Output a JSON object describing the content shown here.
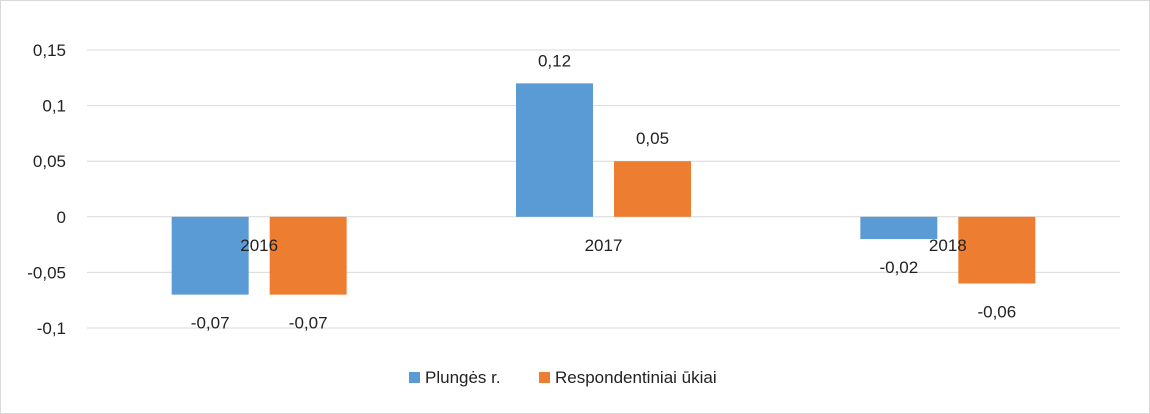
{
  "chart_data": {
    "type": "bar",
    "categories": [
      "2016",
      "2017",
      "2018"
    ],
    "series": [
      {
        "name": "Plungės r.",
        "values": [
          -0.07,
          0.12,
          -0.02
        ],
        "color": "#5b9bd5",
        "labels": [
          "-0,07",
          "0,12",
          "-0,02"
        ]
      },
      {
        "name": "Respondentiniai ūkiai",
        "values": [
          -0.07,
          0.05,
          -0.06
        ],
        "color": "#ed7d31",
        "labels": [
          "-0,07",
          "0,05",
          "-0,06"
        ]
      }
    ],
    "ylim": [
      -0.1,
      0.15
    ],
    "yticks": [
      {
        "value": 0.15,
        "label": "0,15"
      },
      {
        "value": 0.1,
        "label": "0,1"
      },
      {
        "value": 0.05,
        "label": "0,05"
      },
      {
        "value": 0,
        "label": "0"
      },
      {
        "value": -0.05,
        "label": "-0,05"
      },
      {
        "value": -0.1,
        "label": "-0,1"
      }
    ],
    "grid": true,
    "legend": "bottom"
  }
}
